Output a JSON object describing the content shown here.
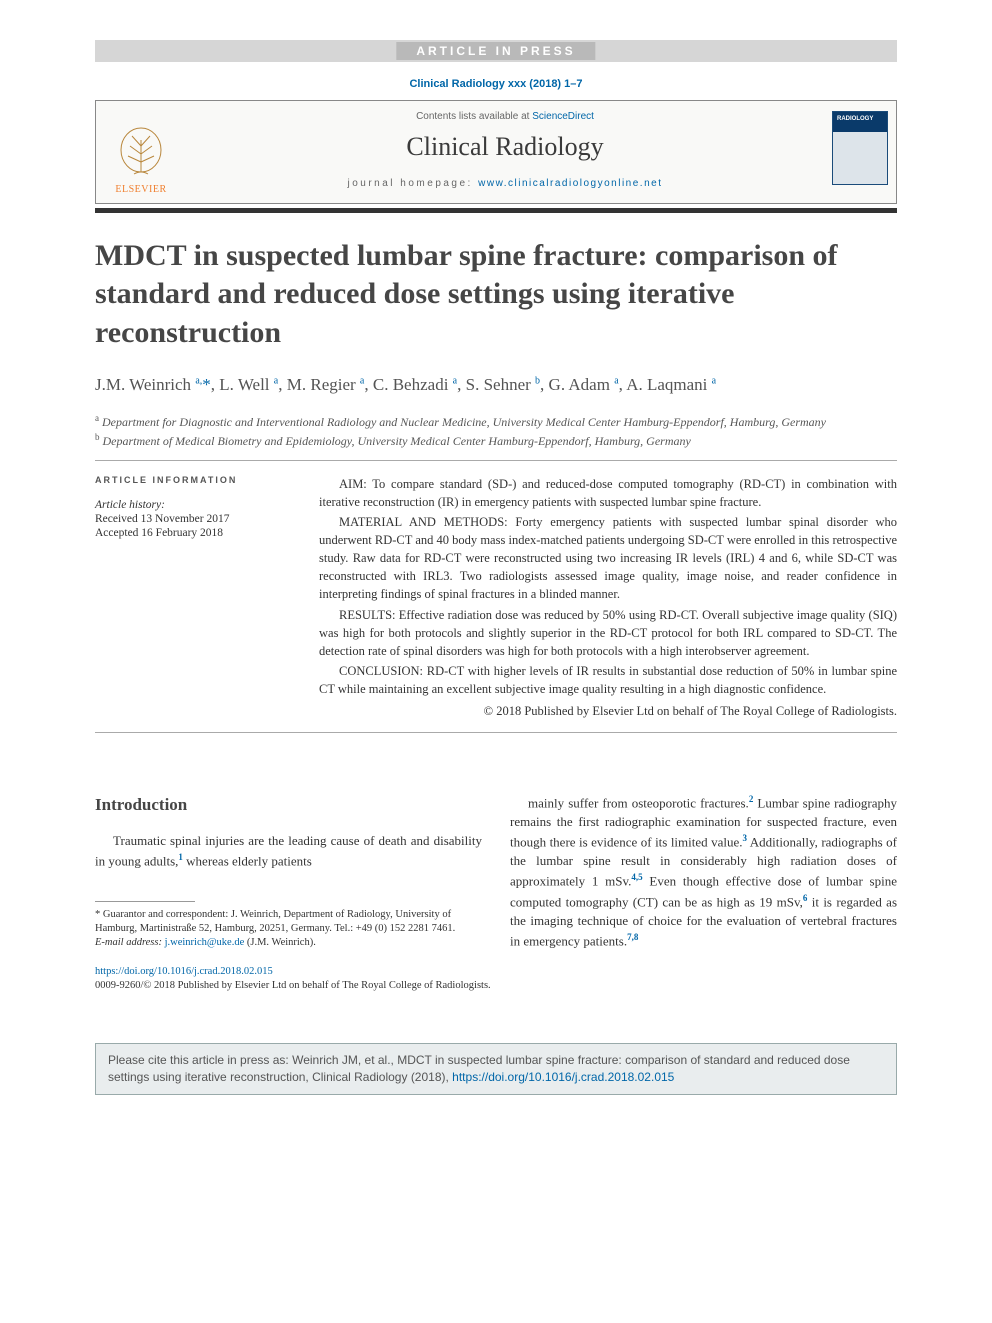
{
  "banner": {
    "aip": "ARTICLE IN PRESS"
  },
  "header": {
    "citation": "Clinical Radiology xxx (2018) 1–7",
    "contents_prefix": "Contents lists available at ",
    "contents_link": "ScienceDirect",
    "journal_name": "Clinical Radiology",
    "homepage_label": "journal homepage: ",
    "homepage_url": "www.clinicalradiologyonline.net",
    "elsevier_caption": "ELSEVIER",
    "cover_label": "RADIOLOGY"
  },
  "article": {
    "title": "MDCT in suspected lumbar spine fracture: comparison of standard and reduced dose settings using iterative reconstruction",
    "authors_html": "J.M. Weinrich <sup>a,</sup><span class='ast'>*</span>, L. Well <sup>a</sup>, M. Regier <sup>a</sup>, C. Behzadi <sup>a</sup>, S. Sehner <sup>b</sup>, G. Adam <sup>a</sup>, A. Laqmani <sup>a</sup>",
    "affiliations": [
      {
        "sup": "a",
        "text": "Department for Diagnostic and Interventional Radiology and Nuclear Medicine, University Medical Center Hamburg-Eppendorf, Hamburg, Germany"
      },
      {
        "sup": "b",
        "text": "Department of Medical Biometry and Epidemiology, University Medical Center Hamburg-Eppendorf, Hamburg, Germany"
      }
    ]
  },
  "info": {
    "section_label": "ARTICLE INFORMATION",
    "history_label": "Article history:",
    "received": "Received 13 November 2017",
    "accepted": "Accepted 16 February 2018"
  },
  "abstract": {
    "aim": "AIM: To compare standard (SD-) and reduced-dose computed tomography (RD-CT) in combination with iterative reconstruction (IR) in emergency patients with suspected lumbar spine fracture.",
    "methods": "MATERIAL AND METHODS: Forty emergency patients with suspected lumbar spinal disorder who underwent RD-CT and 40 body mass index-matched patients undergoing SD-CT were enrolled in this retrospective study. Raw data for RD-CT were reconstructed using two increasing IR levels (IRL) 4 and 6, while SD-CT was reconstructed with IRL3. Two radiologists assessed image quality, image noise, and reader confidence in interpreting findings of spinal fractures in a blinded manner.",
    "results": "RESULTS: Effective radiation dose was reduced by 50% using RD-CT. Overall subjective image quality (SIQ) was high for both protocols and slightly superior in the RD-CT protocol for both IRL compared to SD-CT. The detection rate of spinal disorders was high for both protocols with a high interobserver agreement.",
    "conclusion": "CONCLUSION: RD-CT with higher levels of IR results in substantial dose reduction of 50% in lumbar spine CT while maintaining an excellent subjective image quality resulting in a high diagnostic confidence.",
    "copyright": "© 2018 Published by Elsevier Ltd on behalf of The Royal College of Radiologists."
  },
  "body": {
    "intro_heading": "Introduction",
    "left_para": "Traumatic spinal injuries are the leading cause of death and disability in young adults,{1} whereas elderly patients",
    "right_para": "mainly suffer from osteoporotic fractures.{2} Lumbar spine radiography remains the first radiographic examination for suspected fracture, even though there is evidence of its limited value.{3} Additionally, radiographs of the lumbar spine result in considerably high radiation doses of approximately 1 mSv.{4,5} Even though effective dose of lumbar spine computed tomography (CT) can be as high as 19 mSv,{6} it is regarded as the imaging technique of choice for the evaluation of vertebral fractures in emergency patients.{7,8}"
  },
  "footnotes": {
    "guarantor": "* Guarantor and correspondent: J. Weinrich, Department of Radiology, University of Hamburg, Martinistraße 52, Hamburg, 20251, Germany. Tel.: +49 (0) 152 2281 7461.",
    "email_label": "E-mail address: ",
    "email": "j.weinrich@uke.de",
    "email_suffix": " (J.M. Weinrich)."
  },
  "doi": {
    "url": "https://doi.org/10.1016/j.crad.2018.02.015",
    "line2": "0009-9260/© 2018 Published by Elsevier Ltd on behalf of The Royal College of Radiologists."
  },
  "citebox": {
    "text_prefix": "Please cite this article in press as: Weinrich JM, et al., MDCT in suspected lumbar spine fracture: comparison of standard and reduced dose settings using iterative reconstruction, Clinical Radiology (2018), ",
    "url": "https://doi.org/10.1016/j.crad.2018.02.015"
  },
  "colors": {
    "link": "#0066a8",
    "heading": "#464646",
    "rule": "#333333",
    "aip_bg": "#b9b9b9"
  }
}
